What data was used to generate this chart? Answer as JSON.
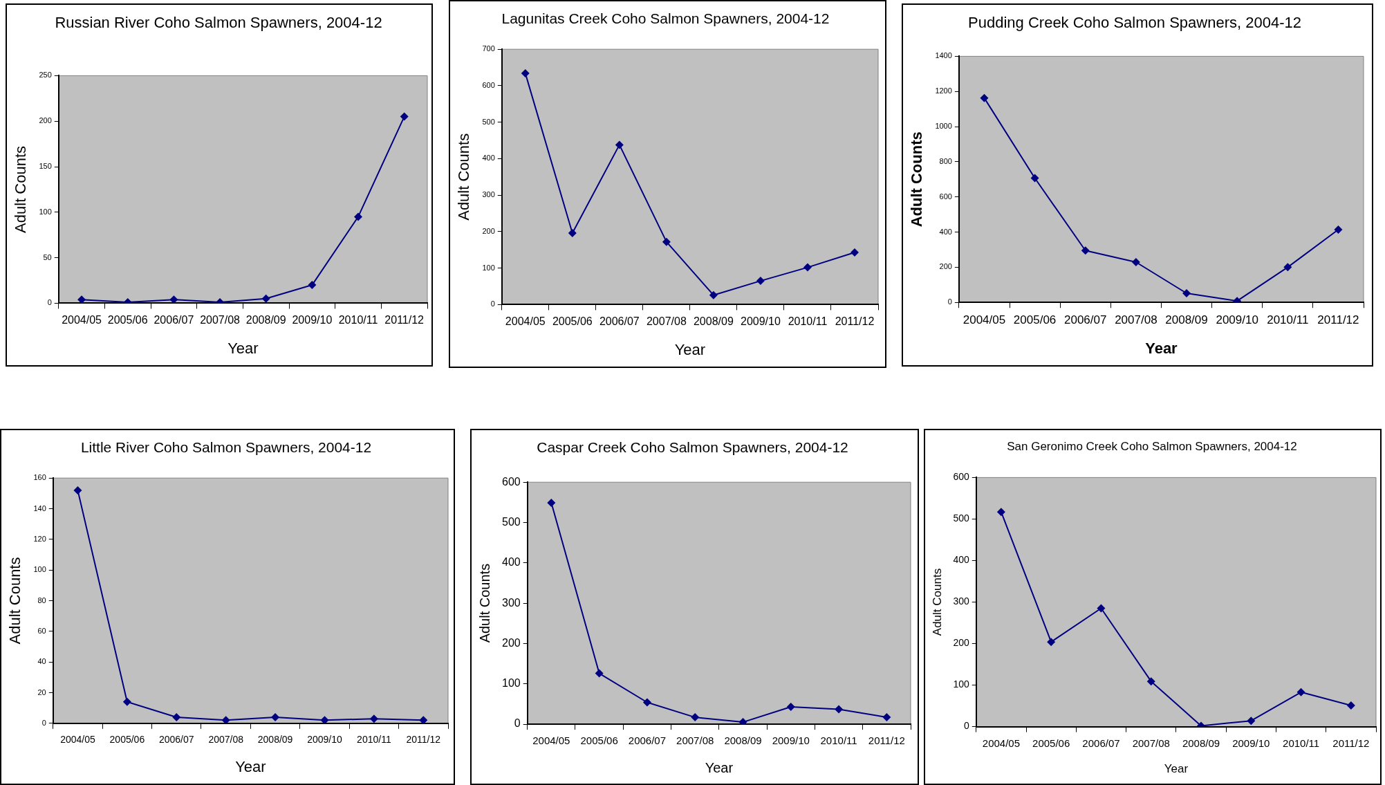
{
  "chart_data": [
    {
      "type": "line",
      "title": "Russian River Coho Salmon Spawners, 2004-12",
      "xlabel": "Year",
      "ylabel": "Adult Counts",
      "categories": [
        "2004/05",
        "2005/06",
        "2006/07",
        "2007/08",
        "2008/09",
        "2009/10",
        "2010/11",
        "2011/12"
      ],
      "series": [
        {
          "color": "#000080",
          "values": [
            4,
            1,
            4,
            1,
            5,
            20,
            95,
            205
          ]
        }
      ],
      "ylim": [
        0,
        250
      ],
      "yticks": [
        0,
        50,
        100,
        150,
        200,
        250
      ],
      "grid": false,
      "legend": false,
      "marker": "diamond",
      "line_style": "solid"
    },
    {
      "type": "line",
      "title": "Lagunitas Creek Coho Salmon Spawners, 2004-12",
      "xlabel": "Year",
      "ylabel": "Adult Counts",
      "categories": [
        "2004/05",
        "2005/06",
        "2006/07",
        "2007/08",
        "2008/09",
        "2009/10",
        "2010/11",
        "2011/12"
      ],
      "series": [
        {
          "color": "#000080",
          "values": [
            634,
            196,
            438,
            172,
            26,
            65,
            102,
            143
          ]
        }
      ],
      "ylim": [
        0,
        700
      ],
      "yticks": [
        0,
        100,
        200,
        300,
        400,
        500,
        600,
        700
      ],
      "grid": false,
      "legend": false,
      "marker": "diamond",
      "line_style": "solid"
    },
    {
      "type": "line",
      "title": "Pudding Creek Coho Salmon Spawners, 2004-12",
      "xlabel": "Year",
      "ylabel": "Adult Counts",
      "categories": [
        "2004/05",
        "2005/06",
        "2006/07",
        "2007/08",
        "2008/09",
        "2009/10",
        "2010/11",
        "2011/12"
      ],
      "series": [
        {
          "color": "#000080",
          "values": [
            1163,
            707,
            295,
            229,
            52,
            8,
            200,
            414
          ]
        }
      ],
      "ylim": [
        0,
        1400
      ],
      "yticks": [
        0,
        200,
        400,
        600,
        800,
        1000,
        1200,
        1400
      ],
      "grid": false,
      "legend": false,
      "marker": "diamond",
      "line_style": "solid"
    },
    {
      "type": "line",
      "title": "Little River Coho Salmon Spawners, 2004-12",
      "xlabel": "Year",
      "ylabel": "Adult Counts",
      "categories": [
        "2004/05",
        "2005/06",
        "2006/07",
        "2007/08",
        "2008/09",
        "2009/10",
        "2010/11",
        "2011/12"
      ],
      "series": [
        {
          "color": "#000080",
          "values": [
            152,
            14,
            4,
            2,
            4,
            2,
            3,
            2
          ]
        }
      ],
      "ylim": [
        0,
        160
      ],
      "yticks": [
        0,
        20,
        40,
        60,
        80,
        100,
        120,
        140,
        160
      ],
      "grid": false,
      "legend": false,
      "marker": "diamond",
      "line_style": "solid"
    },
    {
      "type": "line",
      "title": "Caspar Creek Coho Salmon Spawners, 2004-12",
      "xlabel": "Year",
      "ylabel": "Adult Counts",
      "categories": [
        "2004/05",
        "2005/06",
        "2006/07",
        "2007/08",
        "2008/09",
        "2009/10",
        "2010/11",
        "2011/12"
      ],
      "series": [
        {
          "color": "#000080",
          "values": [
            549,
            126,
            54,
            17,
            5,
            43,
            37,
            17
          ]
        }
      ],
      "ylim": [
        0,
        600
      ],
      "yticks": [
        0,
        100,
        200,
        300,
        400,
        500,
        600
      ],
      "grid": false,
      "legend": false,
      "marker": "diamond",
      "line_style": "solid"
    },
    {
      "type": "line",
      "title": "San Geronimo Creek Coho Salmon Spawners, 2004-12",
      "xlabel": "Year",
      "ylabel": "Adult Counts",
      "categories": [
        "2004/05",
        "2005/06",
        "2006/07",
        "2007/08",
        "2008/09",
        "2009/10",
        "2010/11",
        "2011/12"
      ],
      "series": [
        {
          "color": "#000080",
          "values": [
            517,
            204,
            285,
            109,
            2,
            14,
            83,
            51
          ]
        }
      ],
      "ylim": [
        0,
        600
      ],
      "yticks": [
        0,
        100,
        200,
        300,
        400,
        500,
        600
      ],
      "grid": false,
      "legend": false,
      "marker": "diamond",
      "line_style": "solid"
    }
  ]
}
